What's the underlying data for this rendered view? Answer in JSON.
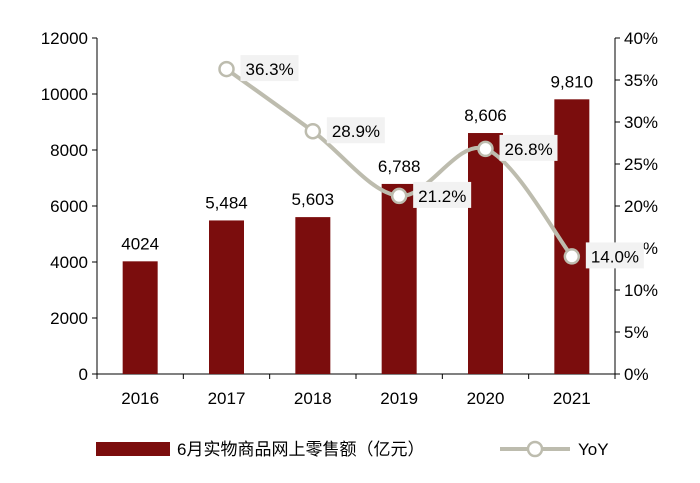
{
  "chart_data": {
    "type": "bar",
    "title": "",
    "xlabel": "",
    "ylabel": "",
    "categories": [
      "2016",
      "2017",
      "2018",
      "2019",
      "2020",
      "2021"
    ],
    "series": [
      {
        "name": "6月实物商品网上零售额（亿元）",
        "type": "bar",
        "axis": "left",
        "values": [
          4024,
          5484,
          5603,
          6788,
          8606,
          9810
        ],
        "labels": [
          "4024",
          "5,484",
          "5,603",
          "6,788",
          "8,606",
          "9,810"
        ]
      },
      {
        "name": "YoY",
        "type": "line",
        "axis": "right",
        "values": [
          null,
          36.3,
          28.9,
          21.2,
          26.8,
          14.0
        ],
        "labels": [
          "",
          "36.3%",
          "28.9%",
          "21.2%",
          "26.8%",
          "14.0%"
        ]
      }
    ],
    "ylim": [
      0,
      12000
    ],
    "yticks": [
      "0",
      "2000",
      "4000",
      "6000",
      "8000",
      "10000",
      "12000"
    ],
    "y2lim": [
      0,
      40
    ],
    "y2ticks": [
      "0%",
      "5%",
      "10%",
      "15%",
      "20%",
      "25%",
      "30%",
      "35%",
      "40%"
    ],
    "grid": false,
    "legend": "bottom",
    "colors": {
      "bar": "#7b0d0d",
      "line": "#bdbcae",
      "label_bg": "#f2f2f2",
      "axis": "#000000"
    }
  }
}
